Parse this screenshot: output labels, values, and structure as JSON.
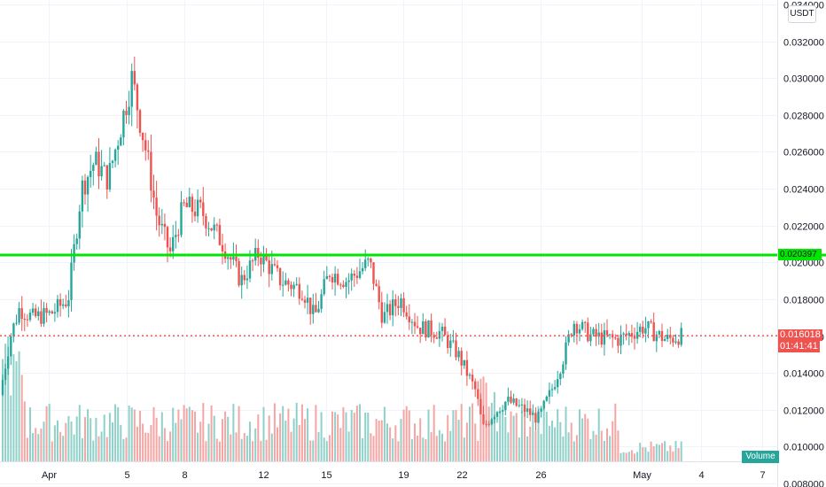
{
  "price_axis": {
    "unit": "USDT",
    "ticks": [
      "0.034000",
      "0.032000",
      "0.030000",
      "0.028000",
      "0.026000",
      "0.024000",
      "0.022000",
      "0.020000",
      "0.018000",
      "0.016000",
      "0.014000",
      "0.012000",
      "0.010000",
      "0.008000"
    ],
    "levels": [
      0.034,
      0.032,
      0.03,
      0.028,
      0.026,
      0.024,
      0.022,
      0.02,
      0.018,
      0.016,
      0.014,
      0.012,
      0.01,
      0.008
    ]
  },
  "time_axis": {
    "ticks": [
      "Apr",
      "5",
      "8",
      "12",
      "15",
      "19",
      "22",
      "26",
      "May",
      "4",
      "7"
    ]
  },
  "horizontal_line": {
    "price": 0.020397,
    "label": "0.020397",
    "color": "#00e600"
  },
  "last_price": {
    "price": 0.016018,
    "label": "0.016018",
    "countdown": "01:41:41",
    "color": "#ef5350"
  },
  "volume_label": "Volume",
  "colors": {
    "up": "#26a69a",
    "down": "#ef5350",
    "grid": "#f0f3fa"
  },
  "chart_data": {
    "type": "candlestick",
    "ylim": [
      0.0066,
      0.035
    ],
    "candles": [],
    "volume": []
  }
}
